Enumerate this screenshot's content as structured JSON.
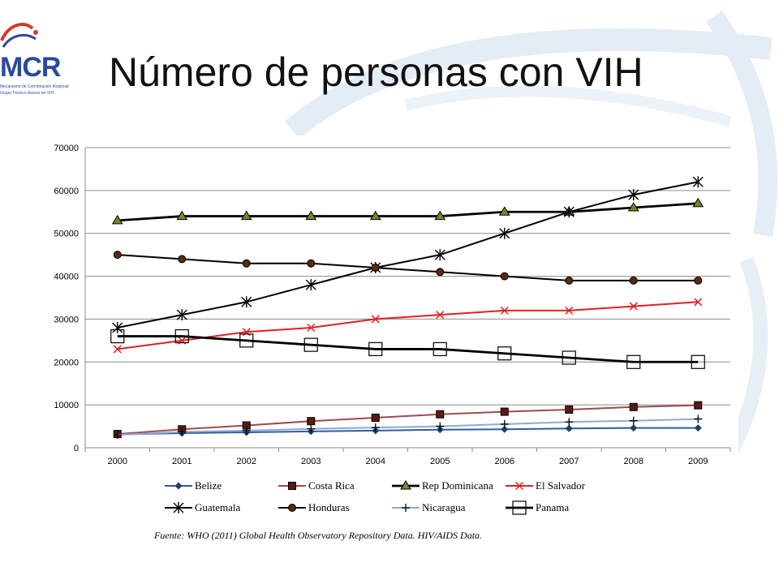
{
  "slide": {
    "title": "Número de personas con VIH",
    "source": "Fuente: WHO (2011) Global Health Observatory Repository Data. HIV/AIDS Data.",
    "logo": {
      "text": "MCR",
      "subtitle_line1": "Mecanismo de Coordinación Regional",
      "subtitle_line2": "Grupo Técnico Asesor en VIH"
    }
  },
  "chart_data": {
    "type": "line",
    "categories": [
      "2000",
      "2001",
      "2002",
      "2003",
      "2004",
      "2005",
      "2006",
      "2007",
      "2008",
      "2009"
    ],
    "ylim": [
      0,
      70000
    ],
    "yticks": [
      0,
      10000,
      20000,
      30000,
      40000,
      50000,
      60000,
      70000
    ],
    "grid": true,
    "legend_position": "bottom",
    "series": [
      {
        "name": "Belize",
        "color": "#2f5d9e",
        "marker": "diamond",
        "values": [
          3100,
          3400,
          3600,
          3800,
          4000,
          4200,
          4300,
          4500,
          4600,
          4600
        ]
      },
      {
        "name": "Costa Rica",
        "color": "#a04a4a",
        "marker": "square-filled",
        "values": [
          3200,
          4300,
          5200,
          6200,
          7000,
          7800,
          8400,
          8900,
          9500,
          9900
        ]
      },
      {
        "name": "Rep Dominicana",
        "color": "#000000",
        "marker": "triangle",
        "values": [
          53000,
          54000,
          54000,
          54000,
          54000,
          54000,
          55000,
          55000,
          56000,
          57000
        ]
      },
      {
        "name": "El Salvador",
        "color": "#e02020",
        "marker": "x",
        "values": [
          23000,
          25000,
          27000,
          28000,
          30000,
          31000,
          32000,
          32000,
          33000,
          34000
        ]
      },
      {
        "name": "Guatemala",
        "color": "#000000",
        "marker": "star",
        "values": [
          28000,
          31000,
          34000,
          38000,
          42000,
          45000,
          50000,
          55000,
          59000,
          62000
        ]
      },
      {
        "name": "Honduras",
        "color": "#000000",
        "marker": "circle",
        "values": [
          45000,
          44000,
          43000,
          43000,
          42000,
          41000,
          40000,
          39000,
          39000,
          39000
        ]
      },
      {
        "name": "Nicaragua",
        "color": "#8ea9d4",
        "marker": "plus",
        "values": [
          3000,
          3700,
          4000,
          4400,
          4700,
          5000,
          5500,
          6000,
          6300,
          6700
        ]
      },
      {
        "name": "Panama",
        "color": "#000000",
        "marker": "square-open",
        "values": [
          26000,
          26000,
          25000,
          24000,
          23000,
          23000,
          22000,
          21000,
          20000,
          20000
        ]
      }
    ]
  }
}
